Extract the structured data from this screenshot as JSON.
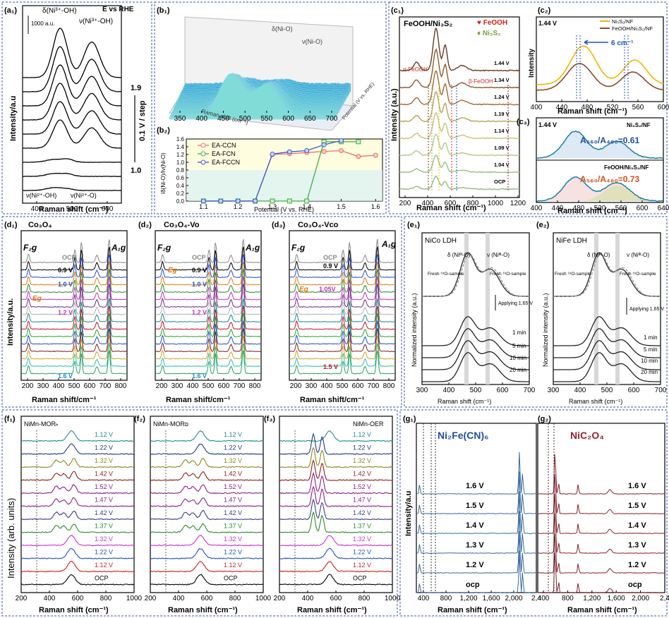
{
  "panels": {
    "a1": {
      "label": "(a₁)",
      "ylabel": "Intensity/a.u",
      "xlabel": "Raman shift (cm⁻¹)",
      "xticks": [
        "400",
        "500",
        "600"
      ],
      "scale": "1000 a.u.",
      "peak1": "δ(Ni³⁺-OH)",
      "peak2": "ν(Ni³⁺-OH)",
      "peak3": "ν(Ni²⁺-OH)",
      "peak4": "ν(Ni²⁺-O)",
      "title": "E vs RHE",
      "side": "0.1 V / step",
      "v_top": "1.9",
      "v_bot": "1.0"
    },
    "b1": {
      "label": "(b₁)",
      "peak1": "δ(Ni-O)",
      "peak2": "ν(Ni-O)",
      "xlabel": "Raman shift (cm⁻¹)",
      "ylabel": "Potential (V vs. RHE)",
      "xticks": [
        "350",
        "400",
        "450",
        "500",
        "550",
        "600",
        "650",
        "700"
      ]
    },
    "b2": {
      "label": "(b₂)",
      "xlabel": "Potential (V vs. RHE)",
      "ylabel": "Iδ(Ni-O)/Iν(Ni-O)"
    },
    "c1": {
      "label": "(c₁)",
      "title": "FeOOH/Ni₃S₂",
      "leg1": "♥ FeOOH",
      "leg2": "♦ Ni₃S₂",
      "a_feooh": "α-FeOOH",
      "b_feooh": "β-FeOOH",
      "ylabel": "Intensity (a.u.)",
      "xlabel": "Raman shift (cm⁻¹)",
      "xticks": [
        "200",
        "400",
        "600",
        "800",
        "1000",
        "1200"
      ],
      "volts": [
        "1.44 V",
        "1.34 V",
        "1.24 V",
        "1.19 V",
        "1.14 V",
        "1.09 V",
        "1.04 V",
        "OCP"
      ]
    },
    "c2": {
      "label": "(c₂)",
      "volt": "1.44 V",
      "leg1": "Ni₃S₂/NF",
      "leg2": "FeOOH/Ni₃S₂/NF",
      "shift": "6 cm⁻¹",
      "ylabel": "Intensity",
      "xlabel": "Raman shift (cm⁻¹)",
      "xticks": [
        "400",
        "440",
        "480",
        "520",
        "560",
        "600"
      ]
    },
    "c3": {
      "label": "(c₃)",
      "volt": "1.44 V",
      "name1": "Ni₃S₂/NF",
      "ratio1": "A₅₆₀/A₄₈₀=0.61",
      "name2": "FeOOH/Ni₃S₂/NF",
      "ratio2": "A₅₆₀/A₄₈₀=0.73",
      "xlabel": "Raman shift (cm⁻¹)",
      "xticks": [
        "400",
        "440",
        "480",
        "520",
        "560",
        "600",
        "640"
      ]
    },
    "d1": {
      "label": "(d₁)",
      "title": "Co₃O₄",
      "f2g": "F₂g",
      "a1g": "A₁g",
      "eg": "Eɡ",
      "ylabel": "Intensity/a.u.",
      "xlabel": "Raman shift/cm⁻¹",
      "xticks": [
        "200",
        "300",
        "400",
        "500",
        "600",
        "700",
        "800"
      ],
      "v_ocp": "OCP",
      "v09": "0.9 V",
      "v10": "1.0 V",
      "v12": "1.2 V",
      "v16": "1.6 V"
    },
    "d2": {
      "label": "(d₂)",
      "title": "Co₃O₄-Vo",
      "f2g": "F₂g",
      "a1g": "A₁g",
      "eg": "Eɡ",
      "xlabel": "Raman shift/cm⁻¹",
      "xticks": [
        "200",
        "300",
        "400",
        "500",
        "600",
        "700",
        "800"
      ],
      "v_ocp": "OCP",
      "v09": "0.9 V",
      "v10": "1.0 V",
      "v12": "1.2 V",
      "v16": "1.6 V"
    },
    "d3": {
      "label": "(d₃)",
      "title": "Co₃O₄-Vco",
      "f2g": "F₂g",
      "a1g": "A₁g",
      "eg": "Eɡ",
      "xlabel": "Raman shift/cm⁻¹",
      "xticks": [
        "200",
        "300",
        "400",
        "500",
        "600",
        "700",
        "800"
      ],
      "v_ocp": "OCP",
      "v09": "0.9 V",
      "v105": "1.05V",
      "v15": "1.5 V"
    },
    "e1": {
      "label": "(e₁)",
      "title": "NiCo LDH",
      "p1": "δ (Niᴵᴵᴵ-O)",
      "p2": "ν (Niᴵᴵᴵ-O)",
      "fresh18": "Fresh ¹⁸O-sample",
      "fresh16": "Fresh ¹⁶O-sample",
      "applying": "Applying 1.65 V",
      "times": [
        "1 min",
        "5 min",
        "10 min",
        "20 min"
      ],
      "ylabel": "Normalized intensity (a.u.)",
      "xlabel": "Raman shift (cm⁻¹)",
      "xticks": [
        "300",
        "400",
        "500",
        "600",
        "700"
      ]
    },
    "e2": {
      "label": "(e₂)",
      "title": "NiFe LDH",
      "p1": "δ (Niᴵᴵᴵ-O)",
      "p2": "ν (Niᴵᴵᴵ-O)",
      "fresh18": "Fresh ¹⁸O-sample",
      "fresh16": "Fresh ¹⁶O-sample",
      "applying": "Applying 1.65 V",
      "times": [
        "1 min",
        "5 min",
        "10 min",
        "20 min"
      ],
      "ylabel": "Normalized intensity (a.u.)",
      "xlabel": "Raman shift (cm⁻¹)",
      "xticks": [
        "300",
        "400",
        "500",
        "600",
        "700"
      ]
    },
    "f1": {
      "label": "(f₁)",
      "title": "NiMn-MORₕ"
    },
    "f2": {
      "label": "(f₂)",
      "title": "NiMn-MORᴅ"
    },
    "f3": {
      "label": "(f₃)",
      "title": "NiMn-OER"
    },
    "f_common": {
      "ylabel": "Intensity (arb. units)",
      "xlabel": "Raman shift (cm⁻¹)",
      "xticks": [
        "200",
        "400",
        "600",
        "800",
        "1000"
      ],
      "volts": [
        "1.12 V",
        "1.22 V",
        "1.32 V",
        "1.42 V",
        "1.52 V",
        "1.47 V",
        "1.42 V",
        "1.37 V",
        "1.32 V",
        "1.22 V",
        "1.12 V",
        "OCP"
      ]
    },
    "g1": {
      "label": "(g₁)",
      "title": "Ni₂Fe(CN)₆",
      "ylabel": "Intensity/a.u",
      "xlabel": "Raman shift (cm⁻¹)",
      "xticks": [
        "400",
        "800",
        "1,200",
        "1,600",
        "2,000",
        "2,4"
      ],
      "volts": [
        "1.6 V",
        "1.5 V",
        "1.4 V",
        "1.3 V",
        "1.2 V",
        "ocp"
      ]
    },
    "g2": {
      "label": "(g₂)",
      "title": "NiC₂O₄",
      "xlabel": "Raman shift (cm⁻¹)",
      "xticks": [
        "400",
        "800",
        "1,200",
        "1,600",
        "2,000",
        "2,4"
      ],
      "volts": [
        "1.6 V",
        "1.5 V",
        "1.4 V",
        "1.3 V",
        "1.2 V",
        "ocp"
      ]
    }
  },
  "chart_data": [
    {
      "type": "line",
      "panel": "b2",
      "title": "",
      "xlabel": "Potential (V vs. RHE)",
      "ylabel": "Iδ(Ni-O)/Iν(Ni-O)",
      "xlim": [
        1.05,
        1.62
      ],
      "ylim": [
        0,
        1.6
      ],
      "xticks": [
        1.1,
        1.2,
        1.3,
        1.4,
        1.5,
        1.6
      ],
      "yticks": [
        0,
        0.2,
        0.4,
        0.6,
        0.8,
        1.0,
        1.2,
        1.4,
        1.6
      ],
      "series": [
        {
          "name": "EA-CCN",
          "color": "#e8736a",
          "x": [
            1.1,
            1.15,
            1.2,
            1.25,
            1.3,
            1.35,
            1.4,
            1.45,
            1.5,
            1.55,
            1.6
          ],
          "y": [
            0,
            0,
            0,
            0,
            1.2,
            1.22,
            1.25,
            1.28,
            1.3,
            1.15,
            1.18
          ]
        },
        {
          "name": "EA-FCN",
          "color": "#3fae3f",
          "x": [
            1.1,
            1.15,
            1.2,
            1.25,
            1.3,
            1.35,
            1.4,
            1.45,
            1.5,
            1.55
          ],
          "y": [
            0,
            0,
            0,
            0,
            0,
            0,
            0,
            1.53,
            1.53,
            1.53
          ]
        },
        {
          "name": "EA-FCCN",
          "color": "#3c5cc7",
          "x": [
            1.1,
            1.15,
            1.2,
            1.25,
            1.3,
            1.35,
            1.4,
            1.45,
            1.5
          ],
          "y": [
            0,
            0,
            0,
            0,
            1.21,
            1.27,
            1.3,
            1.45,
            1.56
          ]
        }
      ]
    }
  ],
  "colors": {
    "border": "#3a56a8",
    "red": "#d11f1f",
    "blue": "#1f4fd1",
    "green": "#2a8a2a",
    "orange": "#e07a10",
    "magenta": "#d02ad0"
  }
}
